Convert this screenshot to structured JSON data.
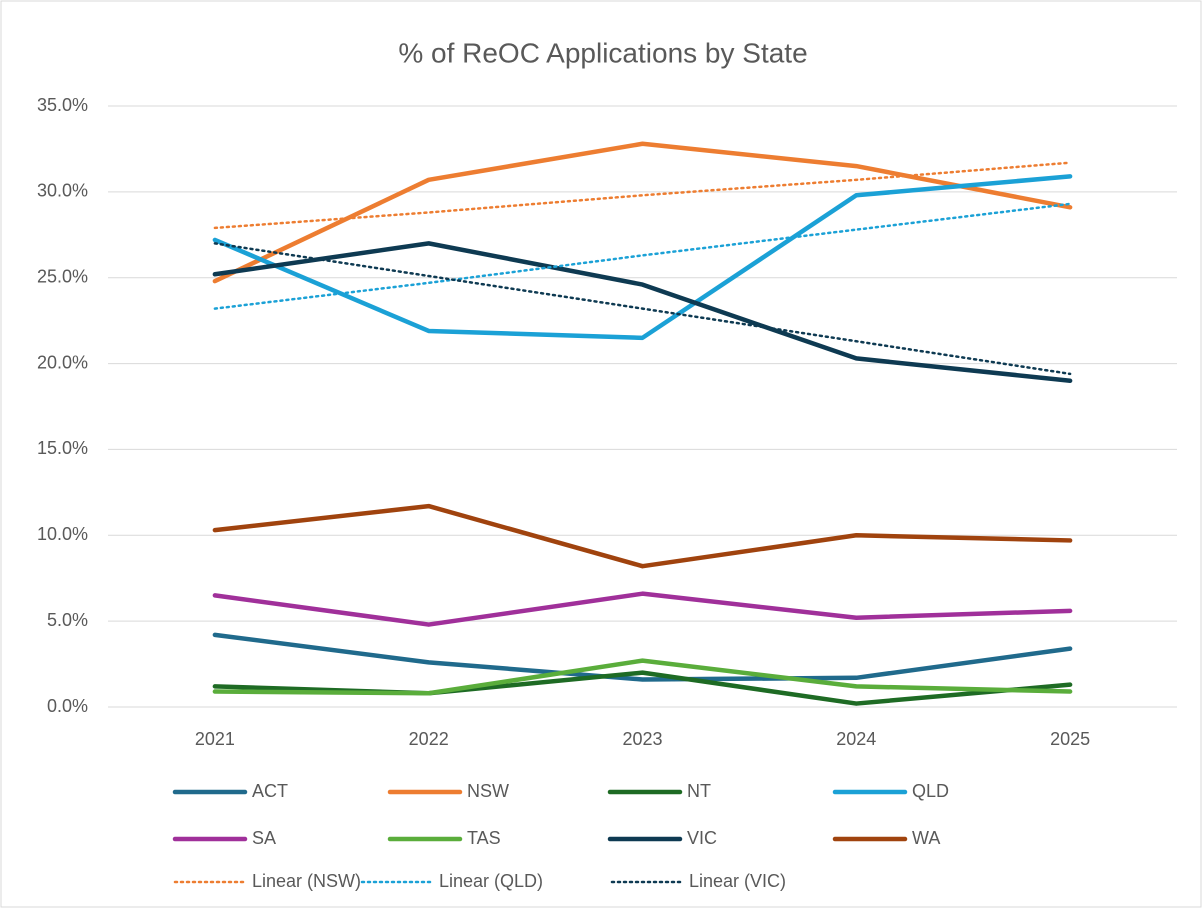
{
  "chart_data": {
    "type": "line",
    "title": "% of ReOC Applications by State",
    "categories": [
      "2021",
      "2022",
      "2023",
      "2024",
      "2025"
    ],
    "ylim": [
      0,
      35
    ],
    "yticks": [
      {
        "value": 0,
        "label": "0.0%"
      },
      {
        "value": 5,
        "label": "5.0%"
      },
      {
        "value": 10,
        "label": "10.0%"
      },
      {
        "value": 15,
        "label": "15.0%"
      },
      {
        "value": 20,
        "label": "20.0%"
      },
      {
        "value": 25,
        "label": "25.0%"
      },
      {
        "value": 30,
        "label": "30.0%"
      },
      {
        "value": 35,
        "label": "35.0%"
      }
    ],
    "grid": true,
    "legend": "bottom",
    "series": [
      {
        "name": "ACT",
        "color": "#206a8c",
        "values": [
          4.2,
          2.6,
          1.6,
          1.7,
          3.4
        ]
      },
      {
        "name": "NSW",
        "color": "#ed7d31",
        "values": [
          24.8,
          30.7,
          32.8,
          31.5,
          29.1
        ]
      },
      {
        "name": "NT",
        "color": "#1e6b24",
        "values": [
          1.2,
          0.8,
          2.0,
          0.2,
          1.3
        ]
      },
      {
        "name": "QLD",
        "color": "#1ba1d6",
        "values": [
          27.2,
          21.9,
          21.5,
          29.8,
          30.9
        ]
      },
      {
        "name": "SA",
        "color": "#a0309a",
        "values": [
          6.5,
          4.8,
          6.6,
          5.2,
          5.6
        ]
      },
      {
        "name": "TAS",
        "color": "#5aad3b",
        "values": [
          0.9,
          0.8,
          2.7,
          1.2,
          0.9
        ]
      },
      {
        "name": "VIC",
        "color": "#0e3a52",
        "values": [
          25.2,
          27.0,
          24.6,
          20.3,
          19.0
        ]
      },
      {
        "name": "WA",
        "color": "#a0430e",
        "values": [
          10.3,
          11.7,
          8.2,
          10.0,
          9.7
        ]
      },
      {
        "name": "Linear (NSW)",
        "color": "#ed7d31",
        "style": "dotted",
        "values": [
          27.9,
          28.8,
          29.8,
          30.7,
          31.7
        ]
      },
      {
        "name": "Linear (QLD)",
        "color": "#1ba1d6",
        "style": "dotted",
        "values": [
          23.2,
          24.7,
          26.3,
          27.8,
          29.3
        ]
      },
      {
        "name": "Linear (VIC)",
        "color": "#0e3a52",
        "style": "dotted",
        "values": [
          27.0,
          25.1,
          23.2,
          21.3,
          19.4
        ]
      }
    ]
  }
}
